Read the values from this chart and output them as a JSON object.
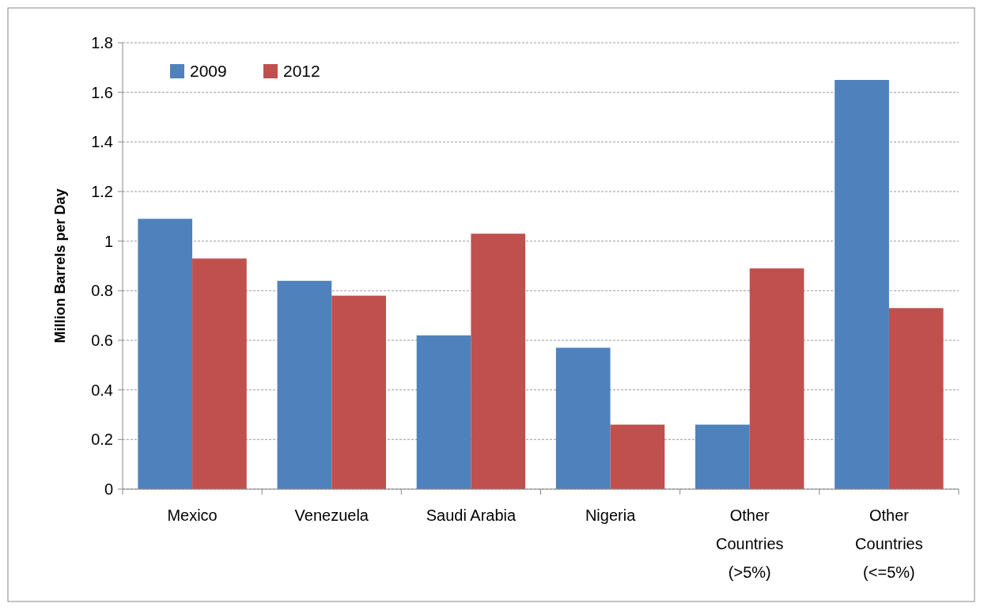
{
  "chart_data": {
    "type": "bar",
    "ylabel": "Million Barrels per Day",
    "categories": [
      "Mexico",
      "Venezuela",
      "Saudi Arabia",
      "Nigeria",
      "Other\nCountries\n(>5%)",
      "Other\nCountries\n(<=5%)"
    ],
    "series": [
      {
        "name": "2009",
        "color": "#4f81bd",
        "values": [
          1.09,
          0.84,
          0.62,
          0.57,
          0.26,
          1.65
        ]
      },
      {
        "name": "2012",
        "color": "#c0504d",
        "values": [
          0.93,
          0.78,
          1.03,
          0.26,
          0.89,
          0.73
        ]
      }
    ],
    "ylim": [
      0,
      1.8
    ],
    "yticks": [
      0,
      {
        "value": 0.2,
        "label": "0.2"
      },
      {
        "value": 0.4,
        "label": "0.4"
      },
      {
        "value": 0.6,
        "label": "0.6"
      },
      {
        "value": 0.8,
        "label": "0.8"
      },
      1,
      {
        "value": 1.2,
        "label": "1.2"
      },
      {
        "value": 1.4,
        "label": "1.4"
      },
      {
        "value": 1.6,
        "label": "1.6"
      },
      {
        "value": 1.8,
        "label": "1.8"
      }
    ],
    "grid": "y",
    "legend": "top left"
  }
}
